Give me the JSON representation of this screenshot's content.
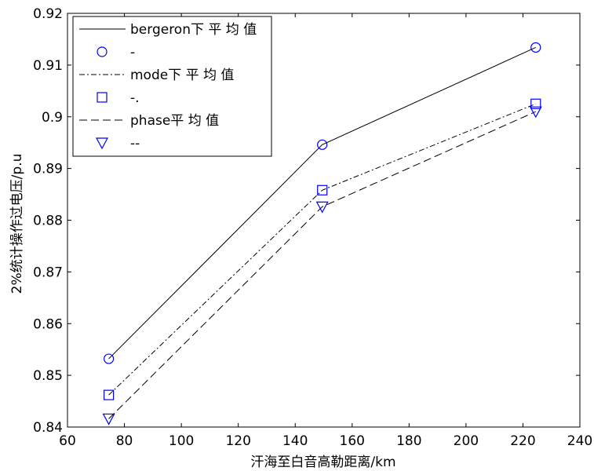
{
  "chart_data": {
    "type": "line",
    "title": "",
    "xlabel": "汗海至白音高勒距离/km",
    "ylabel": "2%统计操作过电压/p.u",
    "xlim": [
      60,
      240
    ],
    "ylim": [
      0.84,
      0.92
    ],
    "xticks": [
      "60",
      "80",
      "100",
      "120",
      "140",
      "160",
      "180",
      "200",
      "220",
      "240"
    ],
    "yticks": [
      "0.84",
      "0.85",
      "0.86",
      "0.87",
      "0.88",
      "0.89",
      "0.9",
      "0.91",
      "0.92"
    ],
    "x": [
      74.5,
      149.5,
      224.5
    ],
    "grid": false,
    "legend_position": "top-left",
    "series": [
      {
        "name": "bergeron下 平 均 值",
        "marker_label": "-",
        "line_style": "solid",
        "marker": "circle",
        "line_color": "#000000",
        "marker_color": "#0000ff",
        "values": [
          0.8532,
          0.8946,
          0.9134
        ]
      },
      {
        "name": "mode下 平 均 值",
        "marker_label": "-.",
        "line_style": "dashdot",
        "marker": "square",
        "line_color": "#000000",
        "marker_color": "#0000ff",
        "values": [
          0.8462,
          0.8858,
          0.9025
        ]
      },
      {
        "name": "phase平 均 值",
        "marker_label": "--",
        "line_style": "dashed",
        "marker": "triangle-down",
        "line_color": "#000000",
        "marker_color": "#0000ff",
        "values": [
          0.8416,
          0.8826,
          0.901
        ]
      }
    ]
  }
}
